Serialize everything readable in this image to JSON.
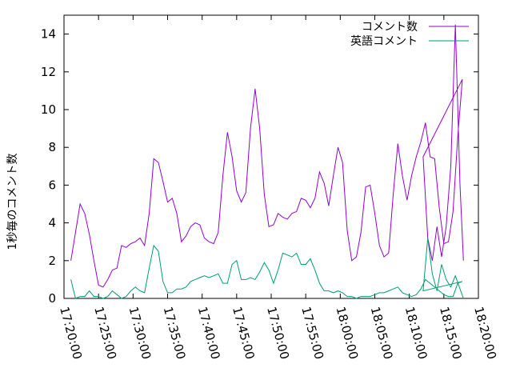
{
  "chart_data": {
    "type": "line",
    "title": "",
    "xlabel": "",
    "ylabel": "1秒毎のコメント数",
    "xlim": [
      "17:20:00",
      "18:20:00"
    ],
    "ylim": [
      0,
      15
    ],
    "x_ticks": [
      "17:20:00",
      "17:25:00",
      "17:30:00",
      "17:35:00",
      "17:40:00",
      "17:45:00",
      "17:50:00",
      "17:55:00",
      "18:00:00",
      "18:05:00",
      "18:10:00",
      "18:15:00",
      "18:20:00"
    ],
    "y_ticks": [
      0,
      2,
      4,
      6,
      8,
      10,
      12,
      14
    ],
    "grid": false,
    "legend_position": "top-right",
    "x": [
      "17:21:00",
      "17:21:40",
      "17:22:20",
      "17:23:00",
      "17:23:40",
      "17:24:20",
      "17:25:00",
      "17:25:40",
      "17:26:20",
      "17:27:00",
      "17:27:40",
      "17:28:20",
      "17:29:00",
      "17:29:40",
      "17:30:20",
      "17:31:00",
      "17:31:40",
      "17:32:20",
      "17:33:00",
      "17:33:40",
      "17:34:20",
      "17:35:00",
      "17:35:40",
      "17:36:20",
      "17:37:00",
      "17:37:40",
      "17:38:20",
      "17:39:00",
      "17:39:40",
      "17:40:20",
      "17:41:00",
      "17:41:40",
      "17:42:20",
      "17:43:00",
      "17:43:40",
      "17:44:20",
      "17:45:00",
      "17:45:40",
      "17:46:20",
      "17:47:00",
      "17:47:40",
      "17:48:20",
      "17:49:00",
      "17:49:40",
      "17:50:20",
      "17:51:00",
      "17:51:40",
      "17:52:20",
      "17:53:00",
      "17:53:40",
      "17:54:20",
      "17:55:00",
      "17:55:40",
      "17:56:20",
      "17:57:00",
      "17:57:40",
      "17:58:20",
      "17:59:00",
      "17:59:40",
      "18:00:20",
      "18:01:00",
      "18:01:40",
      "18:02:20",
      "18:03:00",
      "18:03:40",
      "18:04:20",
      "18:05:00",
      "18:05:40",
      "18:06:20",
      "18:07:00",
      "18:07:40",
      "18:08:20",
      "18:09:00",
      "18:09:40",
      "18:10:20",
      "18:11:00",
      "18:11:40",
      "18:12:20",
      "18:13:00",
      "18:13:40",
      "18:14:20",
      "18:15:00",
      "18:15:40",
      "18:16:20",
      "18:17:00",
      "18:17:40"
    ],
    "series": [
      {
        "name": "コメント数",
        "color": "#9400d3",
        "values": [
          2.0,
          3.5,
          5.0,
          4.5,
          3.4,
          2.0,
          0.7,
          0.6,
          1.0,
          1.5,
          1.6,
          2.8,
          2.7,
          2.9,
          3.0,
          3.2,
          2.8,
          4.5,
          7.4,
          7.2,
          6.2,
          5.1,
          5.3,
          4.5,
          3.0,
          3.3,
          3.8,
          4.0,
          3.9,
          3.2,
          3.0,
          2.9,
          3.5,
          6.5,
          8.8,
          7.5,
          5.7,
          5.1,
          5.6,
          9.0,
          11.1,
          9.0,
          5.5,
          3.8,
          3.9,
          4.5,
          4.3,
          4.2,
          4.5,
          4.6,
          5.3,
          5.2,
          4.8,
          5.3,
          6.7,
          6.1,
          4.9,
          6.5,
          8.0,
          7.2,
          3.6,
          2.0,
          2.2,
          3.5,
          5.9,
          6.0,
          4.5,
          2.8,
          2.2,
          2.4,
          5.5,
          8.2,
          6.5,
          5.2,
          6.5,
          7.5,
          8.3,
          9.3,
          7.5,
          7.4,
          4.8,
          2.9,
          3.0,
          4.6,
          8.5,
          11.6
        ]
      },
      {
        "name": "英語コメント",
        "color": "#009e73",
        "values": [
          1.0,
          0.0,
          0.1,
          0.1,
          0.4,
          0.1,
          0.1,
          0.0,
          0.1,
          0.4,
          0.2,
          0.0,
          0.1,
          0.4,
          0.6,
          0.4,
          0.3,
          1.6,
          2.8,
          2.5,
          0.9,
          0.3,
          0.3,
          0.5,
          0.5,
          0.6,
          0.9,
          1.0,
          1.1,
          1.2,
          1.1,
          1.2,
          1.3,
          0.8,
          0.8,
          1.8,
          2.0,
          1.0,
          1.0,
          1.1,
          1.0,
          1.4,
          1.9,
          1.5,
          0.8,
          1.5,
          2.4,
          2.3,
          2.2,
          2.4,
          1.8,
          1.8,
          2.1,
          1.5,
          0.8,
          0.4,
          0.4,
          0.3,
          0.4,
          0.3,
          0.1,
          0.1,
          0.0,
          0.1,
          0.1,
          0.1,
          0.2,
          0.3,
          0.3,
          0.4,
          0.5,
          0.6,
          0.3,
          0.2,
          0.1,
          0.2,
          0.5,
          1.0,
          0.8,
          0.6,
          0.4,
          0.2,
          0.1,
          0.1,
          0.8,
          0.9
        ]
      }
    ],
    "series_tail": [
      {
        "x": [
          "17:46:00"
        ],
        "note": ""
      }
    ],
    "extra_points": {
      "x": [
        "18:12:00",
        "18:12:40",
        "18:13:20",
        "18:14:00",
        "18:14:40",
        "18:15:20",
        "18:16:00",
        "18:16:40",
        "18:17:20",
        "18:17:50"
      ],
      "comment": [
        7.5,
        3.2,
        2.0,
        3.8,
        2.2,
        3.8,
        7.0,
        14.5,
        6.0,
        2.0
      ],
      "english": [
        0.4,
        3.2,
        1.3,
        0.4,
        1.8,
        1.0,
        0.6,
        1.2,
        0.5,
        0.0
      ]
    }
  }
}
